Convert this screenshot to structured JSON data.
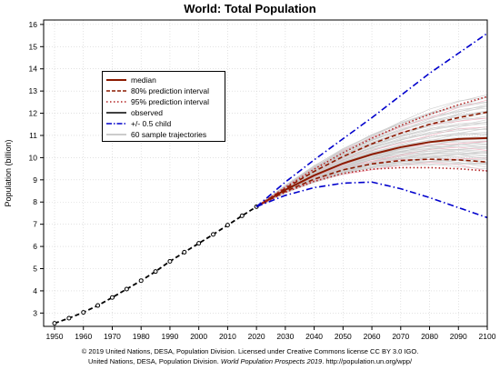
{
  "title": "World: Total Population",
  "credit_line1": "© 2019 United Nations, DESA, Population Division. Licensed under Creative Commons license CC BY 3.0 IGO.",
  "credit_line2_a": "United Nations, DESA, Population Division. ",
  "credit_line2_b": "World Population Prospects 2019",
  "credit_line2_c": ". http://population.un.org/wpp/",
  "chart_data": {
    "type": "line",
    "title": "World: Total Population",
    "xlabel": "",
    "ylabel": "Population (billion)",
    "xlim": [
      1950,
      2100
    ],
    "ylim": [
      2.4,
      16.2
    ],
    "x_ticks": [
      1950,
      1960,
      1970,
      1980,
      1990,
      2000,
      2010,
      2020,
      2030,
      2040,
      2050,
      2060,
      2070,
      2080,
      2090,
      2100
    ],
    "y_ticks": [
      3,
      4,
      5,
      6,
      7,
      8,
      9,
      10,
      11,
      12,
      13,
      14,
      15,
      16
    ],
    "grid": true,
    "legend_position": "top-left",
    "colors": {
      "median": "#8b1a00",
      "interval80": "#8b1a00",
      "interval95": "#b22222",
      "observed": "#000000",
      "half_child": "#0000cc",
      "trajectories": "#c8c8c8",
      "pink_band": "#f4a6b8"
    },
    "series": [
      {
        "name": "observed",
        "style": "black dashed with points",
        "x": [
          1950,
          1955,
          1960,
          1965,
          1970,
          1975,
          1980,
          1985,
          1990,
          1995,
          2000,
          2005,
          2010,
          2015,
          2020
        ],
        "y": [
          2.54,
          2.77,
          3.03,
          3.34,
          3.7,
          4.08,
          4.46,
          4.87,
          5.33,
          5.74,
          6.14,
          6.54,
          6.96,
          7.38,
          7.79
        ]
      },
      {
        "name": "median",
        "x": [
          2020,
          2030,
          2040,
          2050,
          2060,
          2070,
          2080,
          2090,
          2100
        ],
        "y": [
          7.79,
          8.55,
          9.2,
          9.74,
          10.15,
          10.47,
          10.7,
          10.84,
          10.88
        ]
      },
      {
        "name": "80% prediction interval",
        "bound": "upper",
        "x": [
          2020,
          2030,
          2040,
          2050,
          2060,
          2070,
          2080,
          2090,
          2100
        ],
        "y": [
          7.79,
          8.62,
          9.38,
          10.05,
          10.62,
          11.1,
          11.5,
          11.8,
          12.05
        ]
      },
      {
        "name": "80% prediction interval",
        "bound": "lower",
        "x": [
          2020,
          2030,
          2040,
          2050,
          2060,
          2070,
          2080,
          2090,
          2100
        ],
        "y": [
          7.79,
          8.48,
          9.03,
          9.45,
          9.72,
          9.87,
          9.93,
          9.9,
          9.8
        ]
      },
      {
        "name": "95% prediction interval",
        "bound": "upper",
        "x": [
          2020,
          2030,
          2040,
          2050,
          2060,
          2070,
          2080,
          2090,
          2100
        ],
        "y": [
          7.79,
          8.66,
          9.48,
          10.22,
          10.87,
          11.45,
          11.95,
          12.38,
          12.75
        ]
      },
      {
        "name": "95% prediction interval",
        "bound": "lower",
        "x": [
          2020,
          2030,
          2040,
          2050,
          2060,
          2070,
          2080,
          2090,
          2100
        ],
        "y": [
          7.79,
          8.44,
          8.93,
          9.29,
          9.48,
          9.55,
          9.55,
          9.5,
          9.4
        ]
      },
      {
        "name": "+/- 0.5 child",
        "bound": "upper",
        "x": [
          2020,
          2030,
          2040,
          2050,
          2060,
          2070,
          2080,
          2090,
          2100
        ],
        "y": [
          7.79,
          8.9,
          9.9,
          10.85,
          11.8,
          12.8,
          13.8,
          14.7,
          15.6
        ]
      },
      {
        "name": "+/- 0.5 child",
        "bound": "lower",
        "x": [
          2020,
          2030,
          2040,
          2050,
          2060,
          2070,
          2080,
          2090,
          2100
        ],
        "y": [
          7.79,
          8.3,
          8.65,
          8.85,
          8.9,
          8.6,
          8.2,
          7.75,
          7.3
        ]
      }
    ],
    "sample_trajectories": {
      "name": "60 sample trajectories",
      "count": 60,
      "x": [
        2020,
        2030,
        2040,
        2050,
        2060,
        2070,
        2080,
        2090,
        2100
      ],
      "y_min_2100": 9.5,
      "y_max_2100": 12.8
    },
    "legend": [
      "median",
      "80% prediction interval",
      "95% prediction interval",
      "observed",
      "+/- 0.5 child",
      "60 sample trajectories"
    ]
  }
}
